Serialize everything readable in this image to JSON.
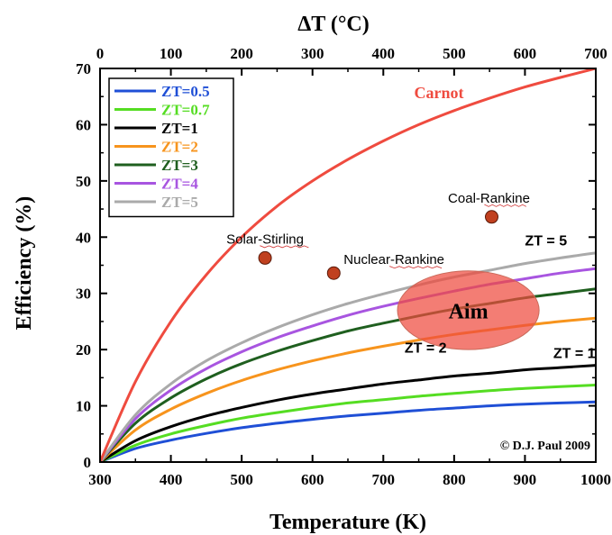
{
  "chart_data": {
    "type": "line",
    "title": "",
    "xlabel": "Temperature (K)",
    "ylabel": "Efficiency (%)",
    "top_xlabel": "ΔT (°C)",
    "xlim": [
      300,
      1000
    ],
    "ylim": [
      0,
      70
    ],
    "top_xlim": [
      0,
      700
    ],
    "x_ticks": [
      "300",
      "400",
      "500",
      "600",
      "700",
      "800",
      "900",
      "1000"
    ],
    "y_ticks": [
      "0",
      "10",
      "20",
      "30",
      "40",
      "50",
      "60",
      "70"
    ],
    "top_x_ticks": [
      "0",
      "100",
      "200",
      "300",
      "400",
      "500",
      "600",
      "700"
    ],
    "grid": false,
    "legend_placement": "top-left",
    "x": [
      300,
      350,
      400,
      450,
      500,
      550,
      600,
      650,
      700,
      750,
      800,
      850,
      900,
      950,
      1000
    ],
    "series": [
      {
        "name": "ZT=0.5",
        "color": "#1f4fd6",
        "values": [
          0,
          2.4,
          3.9,
          5.1,
          6.1,
          6.9,
          7.6,
          8.2,
          8.7,
          9.2,
          9.6,
          10.0,
          10.3,
          10.5,
          10.7
        ]
      },
      {
        "name": "ZT=0.7",
        "color": "#55dd22",
        "values": [
          0,
          3.0,
          5.0,
          6.5,
          7.8,
          8.8,
          9.7,
          10.5,
          11.1,
          11.7,
          12.2,
          12.7,
          13.1,
          13.4,
          13.7
        ]
      },
      {
        "name": "ZT=1",
        "color": "#000000",
        "values": [
          0,
          3.8,
          6.3,
          8.2,
          9.7,
          11.0,
          12.1,
          13.0,
          13.9,
          14.6,
          15.3,
          15.8,
          16.4,
          16.8,
          17.2
        ]
      },
      {
        "name": "ZT=2",
        "color": "#f7941d",
        "values": [
          0,
          5.7,
          9.4,
          12.2,
          14.5,
          16.4,
          18.0,
          19.4,
          20.6,
          21.7,
          22.7,
          23.5,
          24.3,
          25.0,
          25.6
        ]
      },
      {
        "name": "ZT=3",
        "color": "#1f5f1f",
        "values": [
          0,
          6.9,
          11.4,
          14.8,
          17.5,
          19.7,
          21.6,
          23.3,
          24.7,
          26.0,
          27.2,
          28.2,
          29.2,
          30.0,
          30.8
        ]
      },
      {
        "name": "ZT=4",
        "color": "#a855e0",
        "values": [
          0,
          7.7,
          12.8,
          16.6,
          19.6,
          22.1,
          24.2,
          26.1,
          27.7,
          29.1,
          30.4,
          31.6,
          32.6,
          33.6,
          34.4
        ]
      },
      {
        "name": "ZT=5",
        "color": "#aaaaaa",
        "values": [
          0,
          8.4,
          13.9,
          18.0,
          21.2,
          23.9,
          26.2,
          28.2,
          29.9,
          31.5,
          32.9,
          34.1,
          35.3,
          36.3,
          37.2
        ]
      },
      {
        "name": "Carnot",
        "color": "#ef4b3f",
        "values": [
          0,
          14.3,
          25.0,
          33.3,
          40.0,
          45.5,
          50.0,
          53.8,
          57.1,
          60.0,
          62.5,
          64.7,
          66.7,
          68.4,
          70.0
        ]
      }
    ],
    "points": [
      {
        "label": "Solar-Stirling",
        "x": 533,
        "y": 36.3
      },
      {
        "label": "Nuclear-Rankine",
        "x": 630,
        "y": 33.6
      },
      {
        "label": "Coal-Rankine",
        "x": 853,
        "y": 43.6
      }
    ],
    "aim_region": {
      "label": "Aim",
      "cx": 820,
      "cy": 27,
      "rx": 100,
      "ry": 7
    },
    "annotations": [
      {
        "text": "ZT = 5",
        "x": 900,
        "y": 38.5
      },
      {
        "text": "ZT = 2",
        "x": 730,
        "y": 19.5
      },
      {
        "text": "ZT = 1",
        "x": 940,
        "y": 18.5
      }
    ],
    "carnot_label": "Carnot",
    "copyright": "© D.J. Paul 2009"
  }
}
